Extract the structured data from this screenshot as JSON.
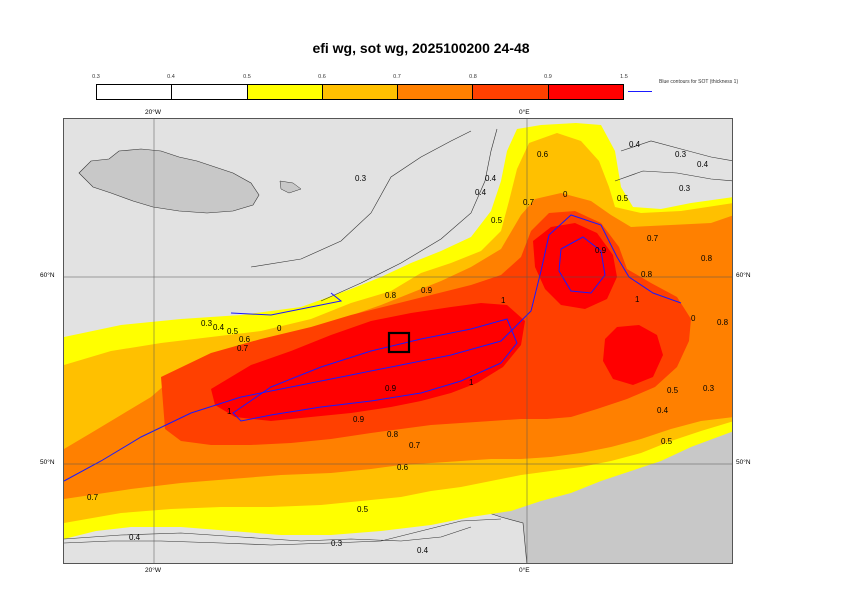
{
  "title": "efi wg, sot wg, 2025100200 24-48",
  "legend": {
    "ticks": [
      "0.3",
      "0.4",
      "0.5",
      "0.6",
      "0.7",
      "0.8",
      "0.9",
      "1.5"
    ],
    "colors": [
      "#ffffff",
      "#ffffff",
      "#ffff00",
      "#ffc000",
      "#ff8000",
      "#ff4000",
      "#ff0000"
    ],
    "contour_note": "Blue contours for SOT (thickness 1)"
  },
  "axes": {
    "top_lon": [
      "20°W",
      "0°E"
    ],
    "bottom_lon": [
      "20°W",
      "0°E"
    ],
    "left_lat": [
      "60°N",
      "50°N"
    ],
    "right_lat": [
      "60°N",
      "50°N"
    ]
  },
  "contour_labels": [
    "0.3",
    "0.4",
    "0.5",
    "0.6",
    "0.7",
    "0.8",
    "0.9",
    "1",
    "0"
  ],
  "colors": {
    "sea": "#e2e2e2",
    "land": "#c8c8c8",
    "sot_contour": "#1a1aff"
  }
}
